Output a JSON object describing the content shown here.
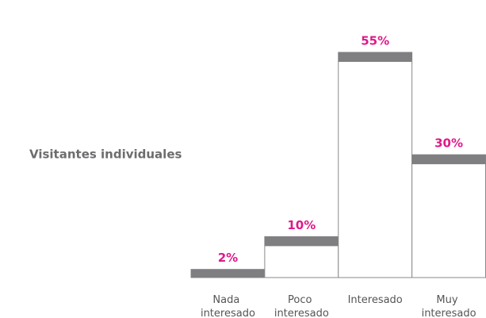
{
  "chart_data": {
    "type": "bar",
    "row_label": "Visitantes individuales",
    "categories": [
      "Nada interesado",
      "Poco interesado",
      "Interesado",
      "Muy interesado"
    ],
    "values": [
      2,
      10,
      55,
      30
    ],
    "value_labels": [
      "2%",
      "10%",
      "55%",
      "30%"
    ],
    "color": "#7f7f82",
    "label_color": "#e0198a"
  }
}
